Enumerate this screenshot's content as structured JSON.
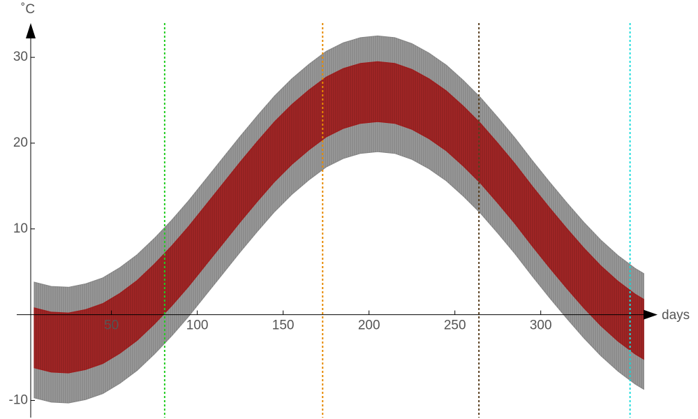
{
  "chart_data": {
    "type": "band",
    "x_label": "days",
    "y_label": "˚C",
    "x": [
      5,
      15,
      25,
      35,
      45,
      55,
      65,
      75,
      85,
      95,
      105,
      115,
      125,
      135,
      145,
      155,
      165,
      175,
      185,
      195,
      205,
      215,
      225,
      235,
      245,
      255,
      265,
      275,
      285,
      295,
      305,
      315,
      325,
      335,
      345,
      355,
      360
    ],
    "bands": [
      {
        "color": "#8a8a8a",
        "lower": [
          -9.7,
          -10.2,
          -10.3,
          -9.9,
          -9.2,
          -8.0,
          -6.5,
          -4.6,
          -2.5,
          -0.2,
          2.3,
          4.8,
          7.3,
          9.7,
          12.0,
          14.0,
          15.7,
          17.2,
          18.2,
          18.8,
          19.0,
          18.8,
          18.1,
          17.0,
          15.6,
          13.8,
          11.8,
          9.5,
          7.1,
          4.5,
          2.0,
          -0.4,
          -2.7,
          -4.8,
          -6.6,
          -8.1,
          -8.7
        ],
        "upper": [
          3.8,
          3.3,
          3.2,
          3.6,
          4.3,
          5.5,
          7.0,
          8.9,
          11.0,
          13.3,
          15.8,
          18.3,
          20.8,
          23.2,
          25.5,
          27.5,
          29.2,
          30.7,
          31.7,
          32.3,
          32.5,
          32.3,
          31.6,
          30.5,
          29.1,
          27.3,
          25.3,
          23.0,
          20.6,
          18.0,
          15.5,
          13.1,
          10.8,
          8.7,
          6.9,
          5.4,
          4.8
        ]
      },
      {
        "color": "#a51c1c",
        "lower": [
          -6.2,
          -6.7,
          -6.8,
          -6.4,
          -5.7,
          -4.5,
          -3.0,
          -1.1,
          1.0,
          3.3,
          5.8,
          8.3,
          10.8,
          13.2,
          15.5,
          17.5,
          19.2,
          20.7,
          21.7,
          22.3,
          22.5,
          22.3,
          21.6,
          20.5,
          19.1,
          17.3,
          15.3,
          13.0,
          10.6,
          8.0,
          5.5,
          3.1,
          0.8,
          -1.3,
          -3.1,
          -4.6,
          -5.2
        ],
        "upper": [
          0.8,
          0.3,
          0.2,
          0.6,
          1.3,
          2.5,
          4.0,
          5.9,
          8.0,
          10.3,
          12.8,
          15.3,
          17.8,
          20.2,
          22.5,
          24.5,
          26.2,
          27.7,
          28.7,
          29.3,
          29.5,
          29.3,
          28.6,
          27.5,
          26.1,
          24.3,
          22.3,
          20.0,
          17.6,
          15.0,
          12.5,
          10.1,
          7.8,
          5.7,
          3.9,
          2.4,
          1.8
        ]
      }
    ],
    "vlines": [
      {
        "x": 81,
        "color": "#22cc22"
      },
      {
        "x": 173,
        "color": "#e68a00"
      },
      {
        "x": 264,
        "color": "#5a4020"
      },
      {
        "x": 352,
        "color": "#22dddd"
      }
    ],
    "xlim": [
      3,
      368
    ],
    "ylim": [
      -12,
      34
    ],
    "xticks": [
      50,
      100,
      150,
      200,
      250,
      300
    ],
    "yticks": [
      -10,
      10,
      20,
      30
    ]
  }
}
